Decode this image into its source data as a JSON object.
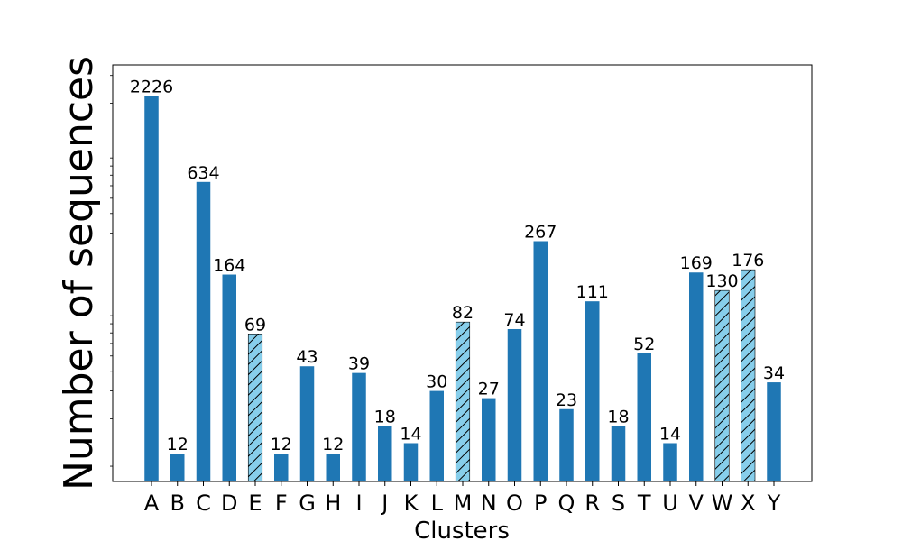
{
  "chart_data": {
    "type": "bar",
    "categories": [
      "A",
      "B",
      "C",
      "D",
      "E",
      "F",
      "G",
      "H",
      "I",
      "J",
      "K",
      "L",
      "M",
      "N",
      "O",
      "P",
      "Q",
      "R",
      "S",
      "T",
      "U",
      "V",
      "W",
      "X",
      "Y"
    ],
    "values": [
      2226,
      12,
      634,
      164,
      69,
      12,
      43,
      12,
      39,
      18,
      14,
      30,
      82,
      27,
      74,
      267,
      23,
      111,
      18,
      52,
      14,
      169,
      130,
      176,
      34
    ],
    "highlighted": [
      "E",
      "M",
      "W",
      "X"
    ],
    "xlabel": "Clusters",
    "ylabel": "Number of sequences",
    "yscale": "log",
    "ylim": [
      8,
      3500
    ],
    "grid": false,
    "colors": {
      "bar": "#1f77b4",
      "highlight": "#87ceeb",
      "hatch": "#000000"
    }
  }
}
